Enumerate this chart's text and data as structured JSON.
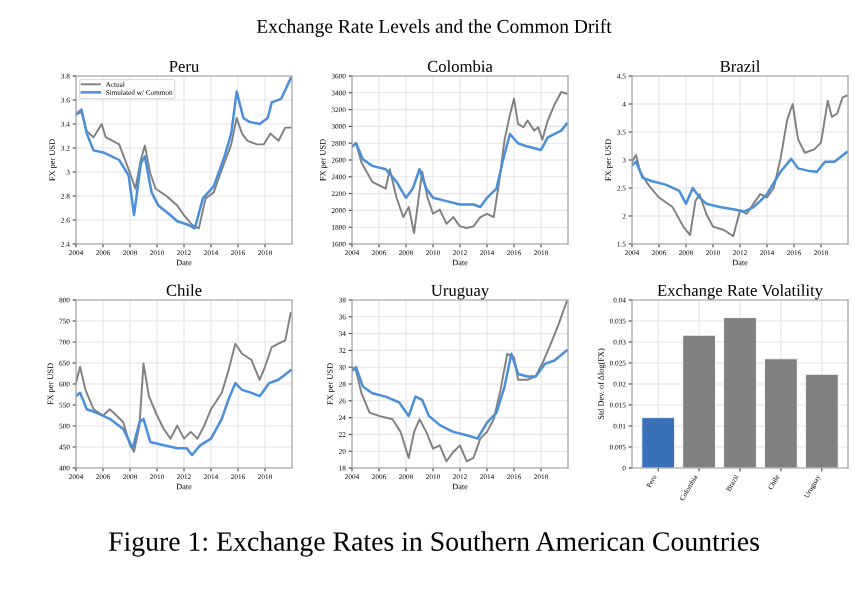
{
  "chart_data": [
    {
      "type": "line",
      "title": "Peru",
      "xlabel": "Date",
      "ylabel": "FX per USD",
      "annotations": [
        "Exchange Rate Levels and the Common Drift",
        "Figure 1: Exchange Rates in Southern American Countries"
      ],
      "xlim": [
        2004,
        2020
      ],
      "xticks": [
        2004,
        2006,
        2008,
        2010,
        2012,
        2014,
        2016,
        2018
      ],
      "ylim": [
        2.4,
        3.8
      ],
      "yticks": [
        2.4,
        2.6,
        2.8,
        3,
        3.2,
        3.4,
        3.6,
        3.8
      ],
      "grid": true,
      "legend": "top left",
      "series": [
        {
          "name": "Actual",
          "color": "#808080",
          "x": [
            2004.0,
            2004.4,
            2004.8,
            2005.3,
            2005.9,
            2006.2,
            2007.2,
            2008.0,
            2008.4,
            2008.8,
            2009.1,
            2009.5,
            2009.9,
            2010.7,
            2011.5,
            2012.0,
            2012.6,
            2013.1,
            2013.6,
            2014.2,
            2014.7,
            2015.5,
            2015.9,
            2016.3,
            2016.7,
            2017.4,
            2017.9,
            2018.4,
            2019.0,
            2019.5,
            2019.9
          ],
          "values": [
            3.48,
            3.5,
            3.34,
            3.29,
            3.4,
            3.29,
            3.23,
            2.99,
            2.86,
            3.1,
            3.22,
            2.99,
            2.86,
            2.8,
            2.72,
            2.64,
            2.56,
            2.53,
            2.78,
            2.83,
            2.99,
            3.23,
            3.45,
            3.32,
            3.26,
            3.23,
            3.23,
            3.32,
            3.26,
            3.37,
            3.37
          ]
        },
        {
          "name": "Simulated w/ Common",
          "color": "#4a8fdb",
          "x": [
            2004.0,
            2004.4,
            2004.8,
            2005.3,
            2006.1,
            2007.2,
            2007.9,
            2008.3,
            2008.8,
            2009.1,
            2009.6,
            2010.1,
            2011.0,
            2011.5,
            2012.3,
            2012.8,
            2013.4,
            2014.2,
            2015.0,
            2015.5,
            2015.9,
            2016.4,
            2016.8,
            2017.6,
            2018.2,
            2018.5,
            2019.2,
            2019.9
          ],
          "values": [
            3.48,
            3.52,
            3.32,
            3.18,
            3.16,
            3.1,
            2.97,
            2.64,
            3.07,
            3.13,
            2.83,
            2.72,
            2.64,
            2.59,
            2.56,
            2.53,
            2.78,
            2.88,
            3.13,
            3.32,
            3.67,
            3.45,
            3.42,
            3.4,
            3.45,
            3.58,
            3.61,
            3.78
          ]
        }
      ]
    },
    {
      "type": "line",
      "title": "Colombia",
      "xlabel": "Date",
      "ylabel": "FX per USD",
      "xlim": [
        2004,
        2020
      ],
      "xticks": [
        2004,
        2006,
        2008,
        2010,
        2012,
        2014,
        2016,
        2018
      ],
      "ylim": [
        1600,
        3600
      ],
      "yticks": [
        1600,
        1800,
        2000,
        2200,
        2400,
        2600,
        2800,
        3000,
        3200,
        3400,
        3600
      ],
      "grid": true,
      "series": [
        {
          "color": "#808080",
          "x": [
            2004.0,
            2004.3,
            2004.7,
            2005.5,
            2006.5,
            2006.8,
            2007.3,
            2007.8,
            2008.2,
            2008.6,
            2009.0,
            2009.2,
            2009.6,
            2010.0,
            2010.5,
            2011.0,
            2011.5,
            2012.0,
            2012.5,
            2013.0,
            2013.5,
            2014.0,
            2014.5,
            2014.9,
            2015.3,
            2015.7,
            2016.0,
            2016.3,
            2016.7,
            2017.0,
            2017.5,
            2017.8,
            2018.1,
            2018.5,
            2019.0,
            2019.5,
            2019.9
          ],
          "values": [
            2760,
            2800,
            2570,
            2340,
            2260,
            2490,
            2150,
            1920,
            2040,
            1730,
            2230,
            2460,
            2150,
            1960,
            2010,
            1840,
            1920,
            1810,
            1790,
            1810,
            1920,
            1960,
            1920,
            2340,
            2840,
            3140,
            3330,
            3030,
            2990,
            3070,
            2950,
            2990,
            2840,
            3070,
            3260,
            3410,
            3390
          ]
        },
        {
          "color": "#4a8fdb",
          "x": [
            2004.0,
            2004.3,
            2004.8,
            2005.5,
            2006.5,
            2007.3,
            2008.0,
            2008.5,
            2009.0,
            2009.5,
            2010.0,
            2011.0,
            2012.0,
            2013.0,
            2013.5,
            2014.0,
            2014.7,
            2015.2,
            2015.7,
            2016.3,
            2017.0,
            2018.0,
            2018.5,
            2019.5,
            2019.9
          ],
          "values": [
            2760,
            2800,
            2610,
            2530,
            2490,
            2340,
            2150,
            2260,
            2490,
            2260,
            2150,
            2110,
            2070,
            2070,
            2040,
            2150,
            2260,
            2610,
            2910,
            2800,
            2760,
            2720,
            2870,
            2950,
            3030
          ]
        }
      ]
    },
    {
      "type": "line",
      "title": "Brazil",
      "xlabel": "Date",
      "ylabel": "FX per USD",
      "xlim": [
        2004,
        2020
      ],
      "xticks": [
        2004,
        2006,
        2008,
        2010,
        2012,
        2014,
        2016,
        2018
      ],
      "ylim": [
        1.5,
        4.5
      ],
      "yticks": [
        1.5,
        2,
        2.5,
        3,
        3.5,
        4,
        4.5
      ],
      "grid": true,
      "series": [
        {
          "color": "#808080",
          "x": [
            2004.0,
            2004.3,
            2004.6,
            2005.2,
            2006.0,
            2007.0,
            2007.8,
            2008.3,
            2008.7,
            2009.0,
            2009.5,
            2010.0,
            2010.8,
            2011.5,
            2012.0,
            2012.5,
            2013.0,
            2013.5,
            2014.0,
            2014.5,
            2015.0,
            2015.5,
            2015.9,
            2016.3,
            2016.8,
            2017.5,
            2018.0,
            2018.5,
            2018.8,
            2019.2,
            2019.6,
            2019.9
          ],
          "values": [
            2.97,
            3.09,
            2.79,
            2.56,
            2.33,
            2.16,
            1.81,
            1.66,
            2.27,
            2.39,
            2.04,
            1.81,
            1.75,
            1.64,
            2.1,
            2.04,
            2.22,
            2.39,
            2.33,
            2.5,
            3.02,
            3.72,
            4.0,
            3.37,
            3.13,
            3.19,
            3.31,
            4.06,
            3.77,
            3.83,
            4.12,
            4.15
          ]
        },
        {
          "color": "#4a8fdb",
          "x": [
            2004.0,
            2004.3,
            2004.8,
            2005.5,
            2006.5,
            2007.5,
            2008.0,
            2008.5,
            2009.0,
            2009.5,
            2010.5,
            2011.5,
            2012.3,
            2013.0,
            2013.5,
            2014.0,
            2015.0,
            2015.8,
            2016.3,
            2017.0,
            2017.7,
            2018.3,
            2019.0,
            2019.9
          ],
          "values": [
            2.91,
            2.97,
            2.68,
            2.62,
            2.56,
            2.45,
            2.22,
            2.5,
            2.33,
            2.22,
            2.16,
            2.12,
            2.08,
            2.16,
            2.27,
            2.39,
            2.79,
            3.02,
            2.85,
            2.81,
            2.79,
            2.97,
            2.97,
            3.14
          ]
        }
      ]
    },
    {
      "type": "line",
      "title": "Chile",
      "xlabel": "Date",
      "ylabel": "FX per USD",
      "xlim": [
        2004,
        2020
      ],
      "xticks": [
        2004,
        2006,
        2008,
        2010,
        2012,
        2014,
        2016,
        2018
      ],
      "ylim": [
        400,
        800
      ],
      "yticks": [
        400,
        450,
        500,
        550,
        600,
        650,
        700,
        750,
        800
      ],
      "grid": true,
      "series": [
        {
          "color": "#808080",
          "x": [
            2004.0,
            2004.3,
            2004.7,
            2005.3,
            2006.0,
            2006.5,
            2007.0,
            2007.5,
            2008.0,
            2008.3,
            2008.7,
            2009.0,
            2009.4,
            2010.0,
            2010.5,
            2011.0,
            2011.5,
            2012.0,
            2012.5,
            2013.0,
            2013.5,
            2014.0,
            2014.8,
            2015.3,
            2015.8,
            2016.3,
            2017.0,
            2017.6,
            2018.0,
            2018.5,
            2019.0,
            2019.5,
            2019.9
          ],
          "values": [
            602,
            641,
            586,
            540,
            525,
            540,
            525,
            509,
            454,
            439,
            501,
            649,
            571,
            525,
            493,
            470,
            501,
            470,
            486,
            470,
            501,
            540,
            579,
            633,
            696,
            672,
            657,
            610,
            641,
            688,
            696,
            704,
            769
          ]
        },
        {
          "color": "#4a8fdb",
          "x": [
            2004.0,
            2004.3,
            2004.8,
            2005.5,
            2006.5,
            2007.5,
            2008.2,
            2008.7,
            2009.0,
            2009.5,
            2010.5,
            2011.5,
            2012.2,
            2012.6,
            2013.2,
            2014.0,
            2014.8,
            2015.3,
            2015.8,
            2016.3,
            2017.0,
            2017.6,
            2018.3,
            2019.0,
            2019.9
          ],
          "values": [
            571,
            579,
            540,
            532,
            517,
            493,
            447,
            509,
            517,
            462,
            454,
            447,
            447,
            431,
            454,
            470,
            517,
            564,
            602,
            586,
            579,
            571,
            602,
            610,
            633
          ]
        }
      ]
    },
    {
      "type": "line",
      "title": "Uruguay",
      "xlabel": "Date",
      "ylabel": "FX per USD",
      "xlim": [
        2004,
        2020
      ],
      "xticks": [
        2004,
        2006,
        2008,
        2010,
        2012,
        2014,
        2016,
        2018
      ],
      "ylim": [
        18,
        38
      ],
      "yticks": [
        18,
        20,
        22,
        24,
        26,
        28,
        30,
        32,
        34,
        36,
        38
      ],
      "grid": true,
      "series": [
        {
          "color": "#808080",
          "x": [
            2004.0,
            2004.3,
            2004.7,
            2005.3,
            2006.0,
            2007.0,
            2007.6,
            2008.2,
            2008.6,
            2009.0,
            2009.5,
            2010.0,
            2010.5,
            2011.0,
            2011.5,
            2012.0,
            2012.5,
            2013.0,
            2013.5,
            2014.0,
            2014.5,
            2015.0,
            2015.5,
            2016.0,
            2016.3,
            2017.0,
            2017.6,
            2018.2,
            2018.7,
            2019.3,
            2019.9
          ],
          "values": [
            30.0,
            29.6,
            26.9,
            24.6,
            24.2,
            23.8,
            22.3,
            19.2,
            22.3,
            23.8,
            22.3,
            20.3,
            20.7,
            18.8,
            19.9,
            20.7,
            18.8,
            19.2,
            21.5,
            22.3,
            23.8,
            27.3,
            31.6,
            31.2,
            28.5,
            28.5,
            28.9,
            30.8,
            32.7,
            35.1,
            37.8
          ]
        },
        {
          "color": "#4a8fdb",
          "x": [
            2004.0,
            2004.3,
            2004.8,
            2005.5,
            2006.5,
            2007.5,
            2008.2,
            2008.7,
            2009.2,
            2009.7,
            2010.5,
            2011.5,
            2012.5,
            2013.3,
            2014.0,
            2014.7,
            2015.3,
            2015.8,
            2016.3,
            2017.0,
            2017.6,
            2018.3,
            2019.0,
            2019.9
          ],
          "values": [
            29.6,
            30.0,
            27.7,
            26.9,
            26.5,
            25.8,
            24.2,
            26.5,
            26.1,
            24.2,
            23.1,
            22.3,
            21.9,
            21.5,
            23.4,
            24.6,
            27.7,
            31.6,
            29.2,
            28.9,
            28.9,
            30.4,
            30.8,
            32.0
          ]
        }
      ]
    },
    {
      "type": "bar",
      "title": "Exchange Rate Volatility",
      "ylabel": "Std Dev. of Δlog(FX)",
      "categories": [
        "Peru",
        "Colombia",
        "Brazil",
        "Chile",
        "Uruguay"
      ],
      "values": [
        0.012,
        0.0316,
        0.0358,
        0.026,
        0.0223
      ],
      "colors": [
        "#3a70b8",
        "#808080",
        "#808080",
        "#808080",
        "#808080"
      ],
      "ylim": [
        0,
        0.04
      ],
      "yticks": [
        0,
        0.005,
        0.01,
        0.015,
        0.02,
        0.025,
        0.03,
        0.035,
        0.04
      ],
      "grid": true
    }
  ]
}
